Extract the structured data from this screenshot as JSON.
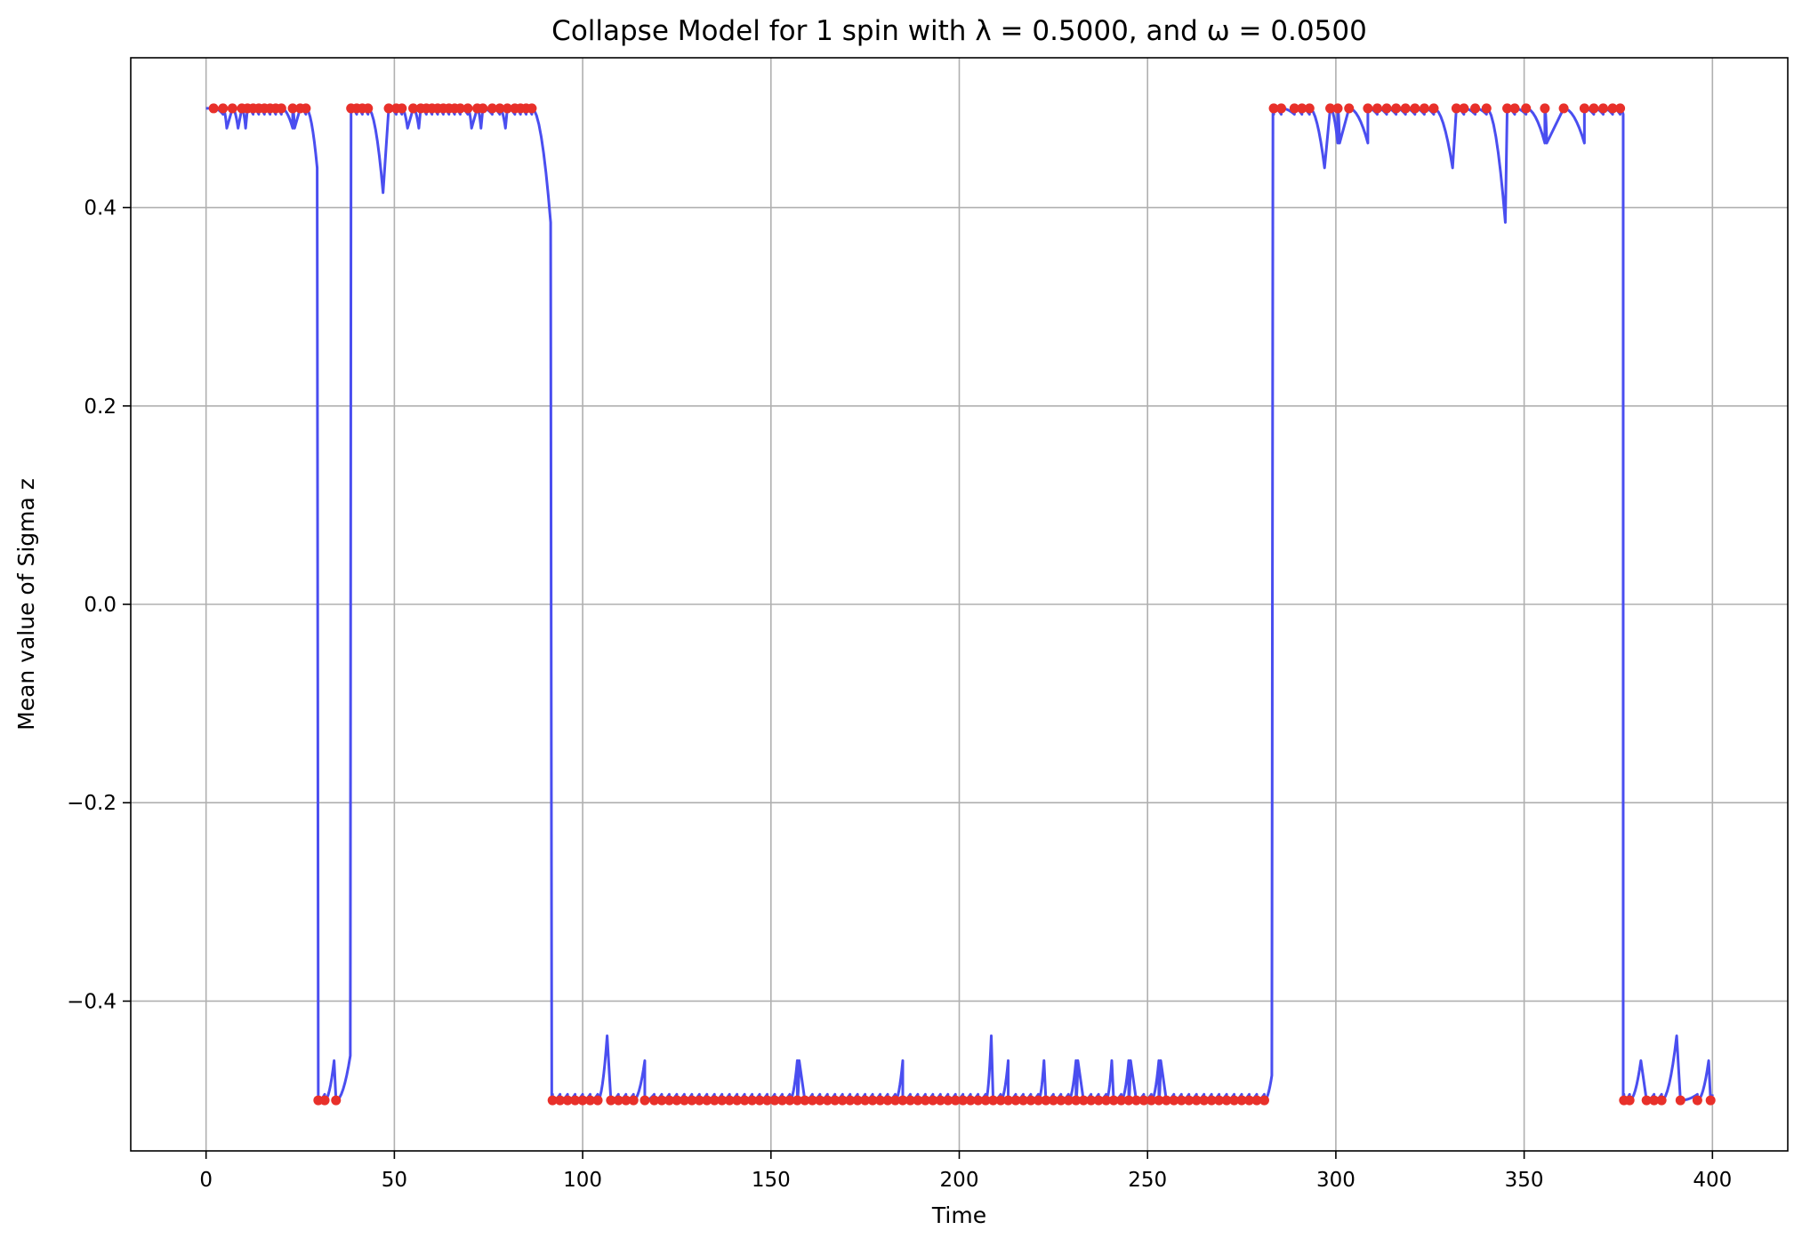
{
  "chart_data": {
    "type": "line",
    "title": "Collapse Model for 1 spin with λ = 0.5000, and ω = 0.0500",
    "xlabel": "Time",
    "ylabel": "Mean value of Sigma z",
    "xlim": [
      -20,
      420
    ],
    "ylim": [
      -0.551,
      0.551
    ],
    "xticks": [
      0,
      50,
      100,
      150,
      200,
      250,
      300,
      350,
      400
    ],
    "xtick_labels": [
      "0",
      "50",
      "100",
      "150",
      "200",
      "250",
      "300",
      "350",
      "400"
    ],
    "yticks": [
      -0.4,
      -0.2,
      0.0,
      0.2,
      0.4
    ],
    "ytick_labels": [
      "−0.4",
      "−0.2",
      "0.0",
      "0.2",
      "0.4"
    ],
    "grid": true,
    "colors": {
      "line": "#4a4ef0",
      "markers": "#e8302a"
    },
    "segments": [
      {
        "state": "up",
        "start": 0,
        "end": 29.8,
        "events": [
          2,
          4.5,
          7,
          9.5,
          11,
          12.5,
          14,
          15.5,
          17,
          18.5,
          20,
          23,
          25,
          26.5
        ],
        "dips": [
          [
            2,
            0.5
          ],
          [
            5.5,
            0.48
          ],
          [
            8.5,
            0.48
          ],
          [
            10.5,
            0.48
          ],
          [
            23.5,
            0.48
          ],
          [
            29.5,
            0.44
          ]
        ]
      },
      {
        "state": "down",
        "start": 29.8,
        "end": 38.5,
        "events": [
          29.8,
          31.5,
          34.5
        ],
        "dips": [
          [
            34,
            -0.46
          ],
          [
            38.3,
            -0.455
          ]
        ]
      },
      {
        "state": "up",
        "start": 38.5,
        "end": 91.8,
        "events": [
          38.5,
          40,
          41.5,
          43,
          48.5,
          50.5,
          52,
          55,
          57,
          58.5,
          60,
          61.5,
          63,
          64.5,
          66,
          67.5,
          69.5,
          72,
          73.5,
          76,
          78,
          80,
          82,
          83.5,
          85,
          86.5
        ],
        "dips": [
          [
            47,
            0.415
          ],
          [
            53.5,
            0.48
          ],
          [
            56.5,
            0.48
          ],
          [
            70.5,
            0.48
          ],
          [
            73,
            0.48
          ],
          [
            79.5,
            0.48
          ],
          [
            91.5,
            0.385
          ]
        ]
      },
      {
        "state": "down",
        "start": 91.8,
        "end": 283.3,
        "events": [
          92,
          94,
          96,
          98,
          100,
          102,
          104,
          107.5,
          109.5,
          111.5,
          113.5,
          116.5,
          119,
          121,
          123,
          125,
          127,
          129,
          131,
          133,
          135,
          137,
          139,
          141,
          143,
          145,
          147,
          149,
          151,
          153,
          155,
          157,
          159,
          161,
          163,
          165,
          167,
          169,
          171,
          173,
          175,
          177,
          179,
          181,
          183,
          185,
          187,
          189,
          191,
          193,
          195,
          197,
          199,
          201,
          203,
          205,
          207,
          209,
          211,
          213,
          215,
          217,
          219,
          221,
          223,
          225,
          227,
          229,
          231,
          233,
          235,
          237,
          239,
          241,
          243,
          245,
          247,
          249,
          251,
          253,
          255,
          257,
          259,
          261,
          263,
          265,
          267,
          269,
          271,
          273,
          275,
          277,
          279,
          281
        ],
        "dips": [
          [
            106.5,
            -0.435
          ],
          [
            116.5,
            -0.46
          ],
          [
            157.5,
            -0.46
          ],
          [
            185,
            -0.46
          ],
          [
            208.5,
            -0.435
          ],
          [
            213,
            -0.46
          ],
          [
            222.5,
            -0.46
          ],
          [
            231.5,
            -0.46
          ],
          [
            240.5,
            -0.46
          ],
          [
            245.5,
            -0.46
          ],
          [
            253.5,
            -0.46
          ],
          [
            283,
            -0.475
          ]
        ]
      },
      {
        "state": "up",
        "start": 283.3,
        "end": 376.3,
        "events": [
          283.5,
          285.5,
          289,
          291,
          293,
          298.5,
          300.5,
          303.5,
          308.5,
          311,
          313.5,
          316,
          318.5,
          321,
          323.5,
          326,
          332,
          334,
          337,
          340,
          345.5,
          347.5,
          350.5,
          355.5,
          360.5,
          366,
          368.5,
          371,
          373.5,
          375.5
        ],
        "dips": [
          [
            297,
            0.44
          ],
          [
            301,
            0.465
          ],
          [
            308.5,
            0.465
          ],
          [
            331,
            0.44
          ],
          [
            345,
            0.385
          ],
          [
            356,
            0.465
          ],
          [
            360,
            0.465
          ],
          [
            366,
            0.465
          ]
        ]
      },
      {
        "state": "down",
        "start": 376.3,
        "end": 400,
        "events": [
          376.5,
          378,
          382.5,
          384.5,
          386.5,
          391.5,
          396,
          399.5
        ],
        "dips": [
          [
            381,
            -0.46
          ],
          [
            390.5,
            -0.435
          ],
          [
            399,
            -0.46
          ]
        ]
      }
    ]
  }
}
